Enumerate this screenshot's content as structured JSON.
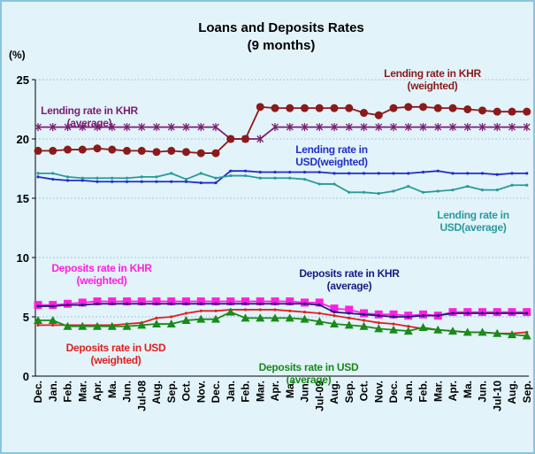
{
  "chart_data": {
    "type": "line",
    "title": "Loans and Deposits Rates",
    "subtitle": "(9 months)",
    "y_label": "(%)",
    "categories": [
      "Dec.",
      "Jan.",
      "Feb.",
      "Mar.",
      "Apr.",
      "Ma.",
      "Jun.",
      "Jul-08",
      "Aug.",
      "Sep.",
      "Oct.",
      "Nov.",
      "Dec.",
      "Jan.",
      "Feb.",
      "Mar.",
      "Apr.",
      "Ma.",
      "Jun.",
      "Jul-09",
      "Aug.",
      "Sep.",
      "Oct.",
      "Nov.",
      "Dec.",
      "Jan.",
      "Feb.",
      "Mar.",
      "Apr.",
      "Ma.",
      "Jun.",
      "Jul-10",
      "Aug.",
      "Sep."
    ],
    "ylim": [
      0,
      25
    ],
    "yticks": [
      0,
      5,
      10,
      15,
      20,
      25
    ],
    "grid": true,
    "series": [
      {
        "name": "Lending rate in KHR (average)",
        "color": "#7a1f70",
        "marker": "star",
        "values": [
          21,
          21,
          21,
          21,
          21,
          21,
          21,
          21,
          21,
          21,
          21,
          21,
          21,
          20,
          20,
          20,
          21,
          21,
          21,
          21,
          21,
          21,
          21,
          21,
          21,
          21,
          21,
          21,
          21,
          21,
          21,
          21,
          21,
          21
        ]
      },
      {
        "name": "Lending rate in KHR (weighted)",
        "color": "#8b1a1a",
        "marker": "circle",
        "values": [
          19,
          19,
          19.1,
          19.1,
          19.2,
          19.1,
          19,
          19,
          18.9,
          19,
          18.9,
          18.8,
          18.8,
          20,
          20,
          22.7,
          22.6,
          22.6,
          22.6,
          22.6,
          22.6,
          22.6,
          22.2,
          22,
          22.6,
          22.7,
          22.7,
          22.6,
          22.6,
          22.5,
          22.4,
          22.3,
          22.3,
          22.3
        ]
      },
      {
        "name": "Lending rate in USD(weighted)",
        "color": "#1f2fc8",
        "marker": "dot",
        "values": [
          16.8,
          16.6,
          16.5,
          16.5,
          16.4,
          16.4,
          16.4,
          16.4,
          16.4,
          16.4,
          16.4,
          16.3,
          16.3,
          17.3,
          17.3,
          17.2,
          17.2,
          17.2,
          17.2,
          17.2,
          17.1,
          17.1,
          17.1,
          17.1,
          17.1,
          17.1,
          17.2,
          17.3,
          17.1,
          17.1,
          17.1,
          17,
          17.1,
          17.1
        ]
      },
      {
        "name": "Lending rate in USD(average)",
        "color": "#2a9a9a",
        "marker": "dot",
        "values": [
          17.1,
          17.1,
          16.8,
          16.7,
          16.7,
          16.7,
          16.7,
          16.8,
          16.8,
          17.1,
          16.6,
          17.1,
          16.7,
          16.9,
          16.9,
          16.7,
          16.7,
          16.7,
          16.6,
          16.2,
          16.2,
          15.5,
          15.5,
          15.4,
          15.6,
          16,
          15.5,
          15.6,
          15.7,
          16,
          15.7,
          15.7,
          16.1,
          16.1
        ]
      },
      {
        "name": "Deposits rate in KHR (weighted)",
        "color": "#ff20e0",
        "marker": "square",
        "values": [
          6,
          6,
          6.1,
          6.2,
          6.3,
          6.3,
          6.3,
          6.3,
          6.3,
          6.3,
          6.3,
          6.3,
          6.3,
          6.3,
          6.3,
          6.3,
          6.3,
          6.3,
          6.2,
          6.2,
          5.7,
          5.6,
          5.3,
          5.2,
          5.2,
          5.1,
          5.2,
          5.1,
          5.4,
          5.4,
          5.4,
          5.4,
          5.4,
          5.4
        ]
      },
      {
        "name": "Deposits rate in KHR (average)",
        "color": "#1a1a80",
        "marker": "dot",
        "values": [
          5.9,
          5.9,
          6,
          6,
          6.1,
          6.1,
          6.1,
          6.1,
          6.1,
          6.1,
          6.1,
          6.1,
          6.1,
          6.1,
          6.1,
          6.1,
          6.1,
          6.1,
          6.1,
          6,
          5.4,
          5.3,
          5.2,
          5.1,
          5,
          5,
          5.1,
          5.1,
          5.3,
          5.3,
          5.3,
          5.3,
          5.3,
          5.3
        ]
      },
      {
        "name": "Deposits rate in USD (weighted)",
        "color": "#e02020",
        "marker": "dot",
        "values": [
          4.3,
          4.3,
          4.3,
          4.3,
          4.3,
          4.3,
          4.4,
          4.5,
          4.9,
          5,
          5.3,
          5.5,
          5.5,
          5.6,
          5.6,
          5.6,
          5.6,
          5.5,
          5.4,
          5.3,
          5.1,
          4.9,
          4.7,
          4.5,
          4.4,
          4.2,
          4,
          3.9,
          3.8,
          3.7,
          3.7,
          3.6,
          3.6,
          3.7
        ]
      },
      {
        "name": "Deposits rate in USD (average)",
        "color": "#1a8a1a",
        "marker": "triangle",
        "values": [
          4.7,
          4.7,
          4.2,
          4.2,
          4.2,
          4.2,
          4.2,
          4.3,
          4.4,
          4.4,
          4.7,
          4.8,
          4.8,
          5.4,
          4.9,
          4.9,
          4.9,
          4.9,
          4.8,
          4.6,
          4.4,
          4.3,
          4.2,
          4,
          3.9,
          3.8,
          4.1,
          3.9,
          3.8,
          3.7,
          3.7,
          3.6,
          3.5,
          3.4
        ]
      }
    ]
  }
}
